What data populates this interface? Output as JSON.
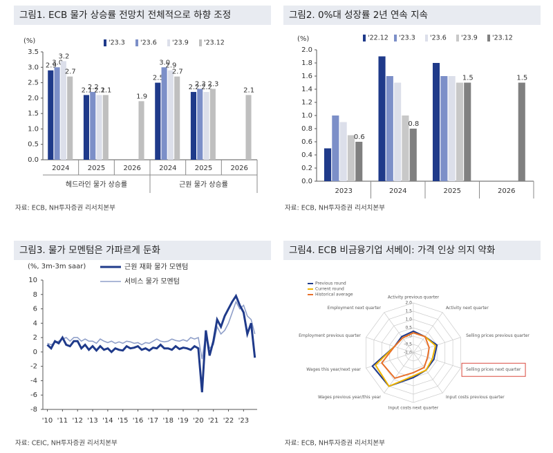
{
  "chart_data": [
    {
      "type": "bar",
      "title": "그림1. ECB 물가 상승률 전망치 전체적으로 하향 조정",
      "y_label": "(%)",
      "categories": [
        "2024",
        "2025",
        "2026",
        "2024",
        "2025",
        "2026"
      ],
      "groups": [
        "헤드라인 물가 상승률",
        "근원 물가 상승률"
      ],
      "series": [
        {
          "name": "'23.3",
          "color": "#1f3a8a",
          "values": [
            2.9,
            2.1,
            null,
            2.5,
            2.2,
            null
          ],
          "value_labels": [
            "2.9",
            "2.1",
            null,
            "2.5",
            "2.2",
            null
          ]
        },
        {
          "name": "'23.6",
          "color": "#7c8fc8",
          "values": [
            3.0,
            2.2,
            null,
            3.0,
            2.3,
            null
          ],
          "value_labels": [
            "3.0",
            "2.2",
            null,
            "3.0",
            "2.3",
            null
          ]
        },
        {
          "name": "'23.9",
          "color": "#dcdfea",
          "values": [
            3.2,
            2.1,
            null,
            2.9,
            2.2,
            null
          ],
          "value_labels": [
            "3.2",
            "2.1",
            null,
            "2.9",
            "2.2",
            null
          ]
        },
        {
          "name": "'23.12",
          "color": "#bfbfbf",
          "values": [
            2.7,
            2.1,
            1.9,
            2.7,
            2.3,
            2.1
          ],
          "value_labels": [
            "2.7",
            "2.1",
            "1.9",
            "2.7",
            "2.3",
            "2.1"
          ]
        }
      ],
      "ylim": [
        0,
        3.5
      ],
      "yticks": [
        {
          "value": 0,
          "label": "0.0"
        },
        0.5,
        {
          "value": 1,
          "label": "1.0"
        },
        1.5,
        {
          "value": 2,
          "label": "2.0"
        },
        2.5,
        {
          "value": 3,
          "label": "3.0"
        },
        3.5
      ],
      "source": "자료: ECB, NH투자증권 리서치본부"
    },
    {
      "type": "bar",
      "title": "그림2. 0%대 성장률 2년 연속 지속",
      "y_label": "(%)",
      "categories": [
        "2023",
        "2024",
        "2025",
        "2026"
      ],
      "series": [
        {
          "name": "'22.12",
          "color": "#1f3a8a",
          "values": [
            0.5,
            1.9,
            1.8,
            null
          ]
        },
        {
          "name": "'23.3",
          "color": "#7c8fc8",
          "values": [
            1.0,
            1.6,
            1.6,
            null
          ]
        },
        {
          "name": "'23.6",
          "color": "#dcdfea",
          "values": [
            0.9,
            1.5,
            1.6,
            null
          ]
        },
        {
          "name": "'23.9",
          "color": "#c8c8c8",
          "values": [
            0.7,
            1.0,
            1.5,
            null
          ]
        },
        {
          "name": "'23.12",
          "color": "#808080",
          "values": [
            0.6,
            0.8,
            1.5,
            1.5
          ],
          "data_labels": true
        }
      ],
      "ylim": [
        0,
        2.0
      ],
      "yticks": [
        {
          "value": 0,
          "label": "0.0"
        },
        0.2,
        0.4,
        0.6,
        0.8,
        {
          "value": 1,
          "label": "1.0"
        },
        1.2,
        1.4,
        1.6,
        1.8,
        {
          "value": 2,
          "label": "2.0"
        }
      ],
      "source": "자료: ECB, NH투자증권 리서치본부"
    },
    {
      "type": "line",
      "title": "그림3. 물가 모멘텀은 가파르게 둔화",
      "y_label": "(%, 3m-3m saar)",
      "x": [
        2010,
        2010.25,
        2010.5,
        2010.75,
        2011,
        2011.25,
        2011.5,
        2011.75,
        2012,
        2012.25,
        2012.5,
        2012.75,
        2013,
        2013.25,
        2013.5,
        2013.75,
        2014,
        2014.25,
        2014.5,
        2014.75,
        2015,
        2015.25,
        2015.5,
        2015.75,
        2016,
        2016.25,
        2016.5,
        2016.75,
        2017,
        2017.25,
        2017.5,
        2017.75,
        2018,
        2018.25,
        2018.5,
        2018.75,
        2019,
        2019.25,
        2019.5,
        2019.75,
        2020,
        2020.25,
        2020.5,
        2020.75,
        2021,
        2021.25,
        2021.5,
        2021.75,
        2022,
        2022.25,
        2022.5,
        2022.75,
        2023,
        2023.25,
        2023.5,
        2023.75
      ],
      "series": [
        {
          "name": "근원 재화 물가 모멘텀",
          "color": "#1f3a8a",
          "values": [
            1.0,
            0.5,
            1.5,
            1.2,
            2.0,
            1.0,
            0.8,
            1.5,
            1.5,
            0.5,
            1.0,
            0.3,
            0.8,
            0.2,
            0.8,
            0.3,
            0.5,
            0.0,
            0.5,
            0.3,
            0.2,
            0.8,
            0.5,
            0.6,
            0.8,
            0.3,
            0.5,
            0.2,
            0.6,
            0.5,
            1.0,
            0.5,
            0.5,
            0.3,
            0.8,
            0.4,
            0.6,
            0.5,
            0.3,
            0.8,
            0.5,
            -5.6,
            3.0,
            -0.5,
            1.5,
            4.5,
            3.5,
            5.0,
            6.0,
            7.0,
            7.8,
            6.5,
            5.5,
            2.5,
            4.0,
            -0.8
          ]
        },
        {
          "name": "서비스 물가 모멘텀",
          "color": "#8f9fc9",
          "values": [
            1.2,
            1.0,
            1.3,
            1.5,
            1.8,
            2.0,
            1.5,
            2.0,
            2.0,
            1.5,
            1.8,
            1.5,
            1.5,
            1.2,
            1.8,
            1.5,
            1.3,
            1.5,
            1.2,
            1.4,
            1.2,
            1.5,
            1.4,
            1.2,
            1.3,
            1.0,
            1.3,
            1.2,
            1.5,
            1.8,
            1.5,
            1.4,
            1.5,
            1.8,
            1.6,
            1.5,
            1.7,
            1.5,
            2.0,
            1.8,
            2.0,
            -1.0,
            2.5,
            0.5,
            1.0,
            3.5,
            2.5,
            3.0,
            4.0,
            5.5,
            7.0,
            6.0,
            6.5,
            5.0,
            4.5,
            2.5
          ]
        }
      ],
      "xlim": [
        2009.7,
        2023.9
      ],
      "xticks": [
        {
          "value": 2010,
          "label": "'10"
        },
        {
          "value": 2011,
          "label": "'11"
        },
        {
          "value": 2012,
          "label": "'12"
        },
        {
          "value": 2013,
          "label": "'13"
        },
        {
          "value": 2014,
          "label": "'14"
        },
        {
          "value": 2015,
          "label": "'15"
        },
        {
          "value": 2016,
          "label": "'16"
        },
        {
          "value": 2017,
          "label": "'17"
        },
        {
          "value": 2018,
          "label": "'18"
        },
        {
          "value": 2019,
          "label": "'19"
        },
        {
          "value": 2020,
          "label": "'20"
        },
        {
          "value": 2021,
          "label": "'21"
        },
        {
          "value": 2022,
          "label": "'22"
        },
        {
          "value": 2023,
          "label": "'23"
        }
      ],
      "ylim": [
        -8,
        10
      ],
      "yticks": [
        -8,
        -6,
        -4,
        -2,
        0,
        2,
        4,
        6,
        8,
        10
      ],
      "source": "자료: CEIC, NH투자증권 리서치본부"
    },
    {
      "type": "radar",
      "title": "그림4. ECB 비금융기업 서베이: 가격 인상 의지 약화",
      "axes": [
        "Activity previous quarter",
        "Activity next quarter",
        "Selling prices previous quarter",
        "Selling prices next quarter",
        "Input costs previous quarter",
        "Input costs next quarter",
        "Wages previous year/this year",
        "Wages this year/next year",
        "Employment previous quarter",
        "Employment next quarter"
      ],
      "highlight_axis": 3,
      "series": [
        {
          "name": "Previous round",
          "color": "#1f3a8a",
          "values": [
            0.3,
            0.2,
            0.5,
            0.3,
            0.3,
            0.5,
            1.5,
            1.6,
            0.2,
            0.2
          ]
        },
        {
          "name": "Current round",
          "color": "#f0b400",
          "values": [
            0.2,
            0.2,
            0.4,
            0.2,
            0.3,
            0.4,
            1.5,
            1.4,
            0.2,
            0.1
          ]
        },
        {
          "name": "Historical average",
          "color": "#e8702a",
          "values": [
            0.2,
            0.2,
            0.0,
            -0.1,
            0.1,
            0.2,
            0.9,
            1.0,
            0.2,
            0.1
          ]
        }
      ],
      "rlim": [
        -1,
        2
      ],
      "rticks": [
        {
          "value": -1,
          "label": "-1.0"
        },
        -0.5,
        {
          "value": 0,
          "label": "0.0"
        },
        0.5,
        {
          "value": 1,
          "label": "1.0"
        },
        1.5,
        {
          "value": 2,
          "label": "2.0"
        }
      ],
      "source": "자료: ECB, NH투자증권 리서치본부"
    }
  ]
}
